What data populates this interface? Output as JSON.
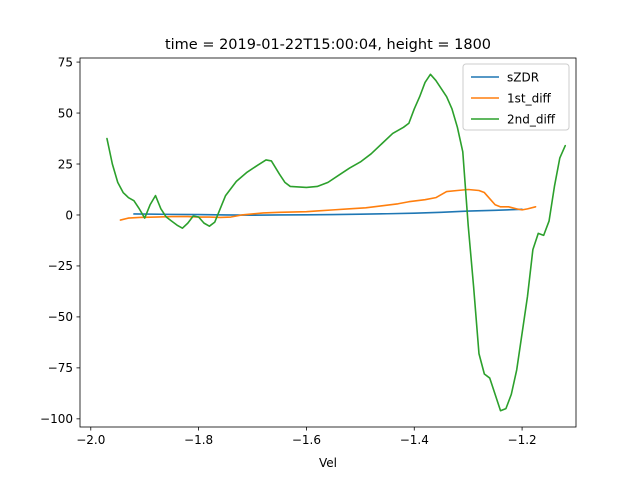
{
  "chart_data": {
    "type": "line",
    "title": "time = 2019-01-22T15:00:04, height = 1800",
    "xlabel": "Vel",
    "ylabel": "",
    "xlim": [
      -2.02,
      -1.1
    ],
    "ylim": [
      -104,
      77
    ],
    "x_ticks": [
      -2.0,
      -1.8,
      -1.6,
      -1.4,
      -1.2
    ],
    "x_tick_labels": [
      "−2.0",
      "−1.8",
      "−1.6",
      "−1.4",
      "−1.2"
    ],
    "y_ticks": [
      -100,
      -75,
      -50,
      -25,
      0,
      25,
      50,
      75
    ],
    "y_tick_labels": [
      "−100",
      "−75",
      "−50",
      "−25",
      "0",
      "25",
      "50",
      "75"
    ],
    "grid": false,
    "legend_position": "top-right",
    "series": [
      {
        "name": "sZDR",
        "color": "#1f77b4",
        "points": [
          [
            -1.92,
            0.5
          ],
          [
            -1.85,
            0.3
          ],
          [
            -1.8,
            0.2
          ],
          [
            -1.75,
            0.0
          ],
          [
            -1.7,
            -0.1
          ],
          [
            -1.65,
            0.0
          ],
          [
            -1.6,
            0.1
          ],
          [
            -1.55,
            0.2
          ],
          [
            -1.5,
            0.4
          ],
          [
            -1.45,
            0.6
          ],
          [
            -1.4,
            0.9
          ],
          [
            -1.35,
            1.3
          ],
          [
            -1.3,
            1.9
          ],
          [
            -1.25,
            2.3
          ],
          [
            -1.2,
            2.8
          ]
        ]
      },
      {
        "name": "1st_diff",
        "color": "#ff7f0e",
        "points": [
          [
            -1.945,
            -2.5
          ],
          [
            -1.93,
            -1.5
          ],
          [
            -1.91,
            -1.2
          ],
          [
            -1.88,
            -1.0
          ],
          [
            -1.85,
            -0.8
          ],
          [
            -1.82,
            -0.8
          ],
          [
            -1.8,
            -1.0
          ],
          [
            -1.78,
            -1.0
          ],
          [
            -1.76,
            -1.2
          ],
          [
            -1.74,
            -1.0
          ],
          [
            -1.72,
            0.0
          ],
          [
            -1.7,
            0.5
          ],
          [
            -1.68,
            1.0
          ],
          [
            -1.65,
            1.3
          ],
          [
            -1.62,
            1.5
          ],
          [
            -1.6,
            1.6
          ],
          [
            -1.58,
            2.0
          ],
          [
            -1.55,
            2.5
          ],
          [
            -1.52,
            3.0
          ],
          [
            -1.49,
            3.5
          ],
          [
            -1.46,
            4.5
          ],
          [
            -1.43,
            5.5
          ],
          [
            -1.41,
            6.5
          ],
          [
            -1.38,
            7.5
          ],
          [
            -1.36,
            8.5
          ],
          [
            -1.34,
            11.5
          ],
          [
            -1.32,
            12.0
          ],
          [
            -1.3,
            12.5
          ],
          [
            -1.28,
            12.0
          ],
          [
            -1.27,
            11.0
          ],
          [
            -1.26,
            8.0
          ],
          [
            -1.25,
            5.0
          ],
          [
            -1.24,
            4.0
          ],
          [
            -1.225,
            4.0
          ],
          [
            -1.21,
            3.0
          ],
          [
            -1.2,
            2.5
          ],
          [
            -1.19,
            3.0
          ],
          [
            -1.175,
            4.0
          ]
        ]
      },
      {
        "name": "2nd_diff",
        "color": "#2ca02c",
        "points": [
          [
            -1.97,
            37.5
          ],
          [
            -1.96,
            25.0
          ],
          [
            -1.95,
            16.0
          ],
          [
            -1.94,
            11.0
          ],
          [
            -1.93,
            8.5
          ],
          [
            -1.92,
            7.0
          ],
          [
            -1.91,
            3.0
          ],
          [
            -1.9,
            -1.5
          ],
          [
            -1.89,
            5.0
          ],
          [
            -1.88,
            9.5
          ],
          [
            -1.87,
            3.0
          ],
          [
            -1.86,
            -1.0
          ],
          [
            -1.85,
            -3.0
          ],
          [
            -1.84,
            -5.0
          ],
          [
            -1.83,
            -6.5
          ],
          [
            -1.82,
            -4.0
          ],
          [
            -1.81,
            -0.5
          ],
          [
            -1.8,
            -1.0
          ],
          [
            -1.79,
            -4.0
          ],
          [
            -1.78,
            -5.5
          ],
          [
            -1.77,
            -3.5
          ],
          [
            -1.76,
            3.0
          ],
          [
            -1.75,
            9.5
          ],
          [
            -1.73,
            16.5
          ],
          [
            -1.71,
            21.0
          ],
          [
            -1.69,
            24.5
          ],
          [
            -1.675,
            27.0
          ],
          [
            -1.665,
            26.5
          ],
          [
            -1.65,
            20.0
          ],
          [
            -1.64,
            16.0
          ],
          [
            -1.63,
            14.0
          ],
          [
            -1.6,
            13.5
          ],
          [
            -1.58,
            14.0
          ],
          [
            -1.56,
            16.0
          ],
          [
            -1.54,
            19.5
          ],
          [
            -1.52,
            23.0
          ],
          [
            -1.5,
            26.0
          ],
          [
            -1.48,
            30.0
          ],
          [
            -1.46,
            35.0
          ],
          [
            -1.44,
            40.0
          ],
          [
            -1.42,
            43.0
          ],
          [
            -1.41,
            45.0
          ],
          [
            -1.4,
            52.0
          ],
          [
            -1.39,
            58.0
          ],
          [
            -1.38,
            65.0
          ],
          [
            -1.37,
            69.0
          ],
          [
            -1.36,
            66.0
          ],
          [
            -1.35,
            62.0
          ],
          [
            -1.34,
            58.0
          ],
          [
            -1.33,
            52.0
          ],
          [
            -1.32,
            43.0
          ],
          [
            -1.31,
            31.0
          ],
          [
            -1.3,
            -5.0
          ],
          [
            -1.29,
            -35.0
          ],
          [
            -1.28,
            -68.0
          ],
          [
            -1.27,
            -78.0
          ],
          [
            -1.26,
            -80.0
          ],
          [
            -1.25,
            -88.0
          ],
          [
            -1.24,
            -96.0
          ],
          [
            -1.23,
            -95.0
          ],
          [
            -1.22,
            -88.0
          ],
          [
            -1.21,
            -76.0
          ],
          [
            -1.2,
            -58.0
          ],
          [
            -1.19,
            -40.0
          ],
          [
            -1.18,
            -17.0
          ],
          [
            -1.17,
            -9.0
          ],
          [
            -1.16,
            -10.0
          ],
          [
            -1.15,
            -3.0
          ],
          [
            -1.14,
            14.0
          ],
          [
            -1.13,
            28.0
          ],
          [
            -1.12,
            34.0
          ]
        ]
      }
    ]
  }
}
